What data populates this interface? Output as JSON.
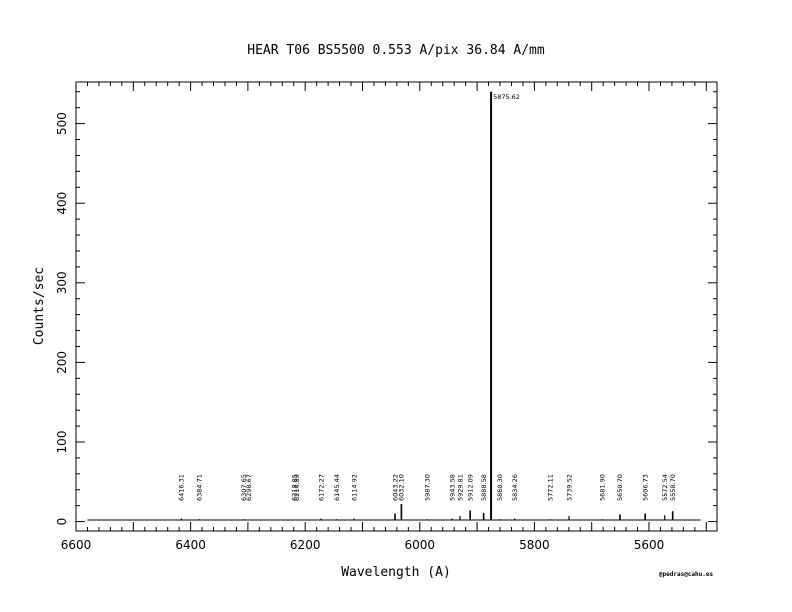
{
  "chart_data": {
    "type": "line",
    "title": "HEAR  T06  BS5500  0.553 A/pix  36.84 A/mm",
    "xlabel": "Wavelength (A)",
    "ylabel": "Counts/sec",
    "xlim": [
      6600,
      5500
    ],
    "ylim": [
      -12,
      555
    ],
    "x_reversed": true,
    "x_ticks": [
      6600,
      6400,
      6200,
      6000,
      5800,
      5600
    ],
    "y_ticks": [
      0,
      100,
      200,
      300,
      400,
      500
    ],
    "baseline_range": [
      6580,
      5510
    ],
    "baseline_value": 2,
    "lines": [
      {
        "wavelength": 6416.31,
        "label": "6416.31",
        "peak": 4
      },
      {
        "wavelength": 6384.71,
        "label": "6384.71",
        "peak": 3
      },
      {
        "wavelength": 6307.65,
        "label": "6307.65",
        "peak": 3
      },
      {
        "wavelength": 6298.67,
        "label": "6298.67",
        "peak": 2
      },
      {
        "wavelength": 6218.85,
        "label": "6218.85",
        "peak": 2
      },
      {
        "wavelength": 6214.89,
        "label": "6214.89",
        "peak": 2
      },
      {
        "wavelength": 6172.27,
        "label": "6172.27",
        "peak": 4
      },
      {
        "wavelength": 6145.44,
        "label": "6145.44",
        "peak": 3
      },
      {
        "wavelength": 6114.92,
        "label": "6114.92",
        "peak": 4
      },
      {
        "wavelength": 6043.22,
        "label": "6043.22",
        "peak": 10
      },
      {
        "wavelength": 6032.1,
        "label": "6032.10",
        "peak": 22
      },
      {
        "wavelength": 5987.3,
        "label": "5987.30",
        "peak": 3
      },
      {
        "wavelength": 5943.58,
        "label": "5943.58",
        "peak": 4
      },
      {
        "wavelength": 5929.81,
        "label": "5929.81",
        "peak": 7
      },
      {
        "wavelength": 5912.09,
        "label": "5912.09",
        "peak": 14
      },
      {
        "wavelength": 5888.58,
        "label": "5888.58",
        "peak": 11
      },
      {
        "wavelength": 5875.62,
        "label": "5875.62",
        "peak": 540
      },
      {
        "wavelength": 5860.3,
        "label": "5860.30",
        "peak": 3
      },
      {
        "wavelength": 5834.26,
        "label": "5834.26",
        "peak": 4
      },
      {
        "wavelength": 5772.11,
        "label": "5772.11",
        "peak": 3
      },
      {
        "wavelength": 5739.52,
        "label": "5739.52",
        "peak": 7
      },
      {
        "wavelength": 5681.9,
        "label": "5681.90",
        "peak": 3
      },
      {
        "wavelength": 5650.7,
        "label": "5650.70",
        "peak": 9
      },
      {
        "wavelength": 5606.73,
        "label": "5606.73",
        "peak": 10
      },
      {
        "wavelength": 5572.54,
        "label": "5572.54",
        "peak": 8
      },
      {
        "wavelength": 5558.7,
        "label": "5558.70",
        "peak": 13
      }
    ],
    "grid": false,
    "legend": "none"
  },
  "credit": "@pedras@cahu.es"
}
